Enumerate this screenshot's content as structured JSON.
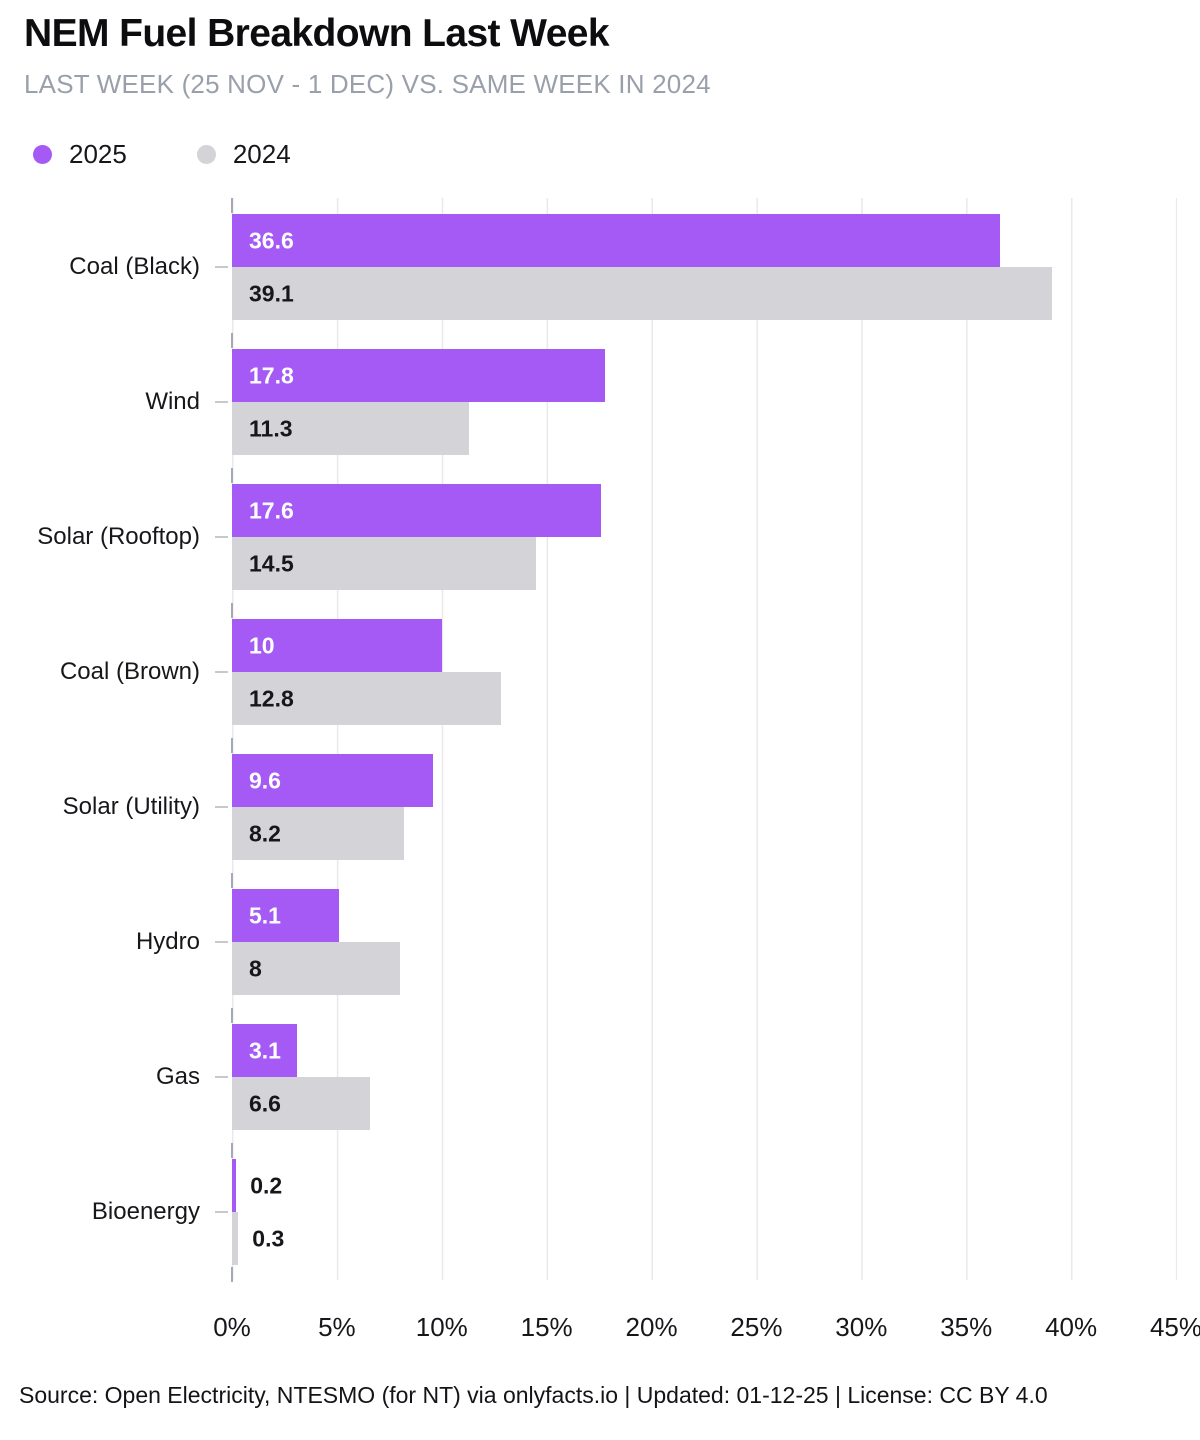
{
  "header": {
    "title": "NEM Fuel Breakdown Last Week",
    "subtitle": "LAST WEEK (25 NOV - 1 DEC) VS. SAME WEEK IN 2024"
  },
  "legend": {
    "items": [
      {
        "label": "2025",
        "color": "#a55af6"
      },
      {
        "label": "2024",
        "color": "#d4d4d8"
      }
    ]
  },
  "chart_data": {
    "type": "bar",
    "orientation": "horizontal",
    "title": "NEM Fuel Breakdown Last Week",
    "subtitle": "LAST WEEK (25 NOV - 1 DEC) VS. SAME WEEK IN 2024",
    "categories": [
      "Coal (Black)",
      "Wind",
      "Solar (Rooftop)",
      "Coal (Brown)",
      "Solar (Utility)",
      "Hydro",
      "Gas",
      "Bioenergy"
    ],
    "series": [
      {
        "name": "2025",
        "color": "#a55af6",
        "values": [
          36.6,
          17.8,
          17.6,
          10,
          9.6,
          5.1,
          3.1,
          0.2
        ]
      },
      {
        "name": "2024",
        "color": "#d4d4d8",
        "values": [
          39.1,
          11.3,
          14.5,
          12.8,
          8.2,
          8,
          6.6,
          0.3
        ]
      }
    ],
    "xlim": [
      0,
      45
    ],
    "x_tick_labels": [
      "0%",
      "5%",
      "10%",
      "15%",
      "20%",
      "25%",
      "30%",
      "35%",
      "40%",
      "45%"
    ],
    "grid": true,
    "legend_position": "top-left",
    "value_label_color_inside_2025": "#ffffff",
    "value_label_color_inside_2024": "#17171b",
    "value_label_color_outside": "#17171b"
  },
  "footer": {
    "text": "Source: Open Electricity, NTESMO (for NT) via onlyfacts.io | Updated: 01-12-25 | License: CC BY 4.0"
  }
}
